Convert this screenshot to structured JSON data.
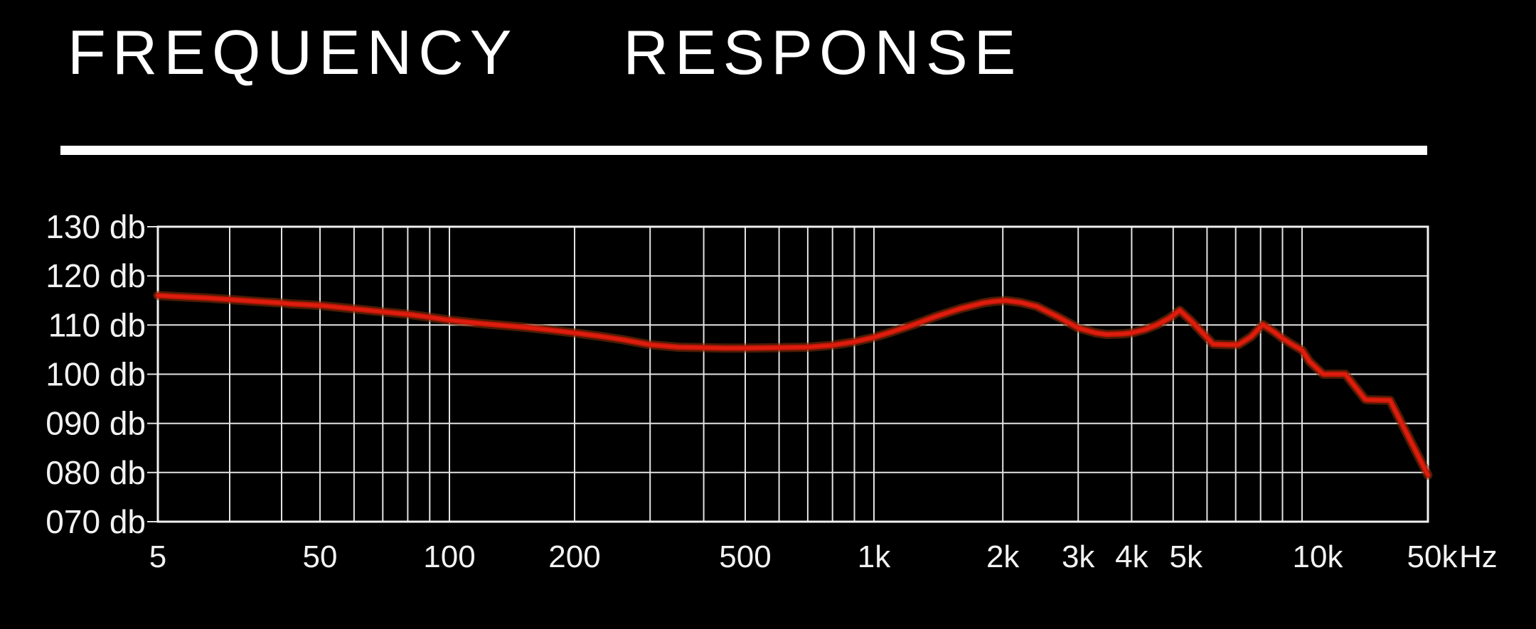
{
  "page": {
    "title": "FREQUENCY RESPONSE"
  },
  "styles": {
    "background": "#000000",
    "grid_color": "#e3e3e3",
    "frame_color": "#f0f0f0",
    "text_color": "#f2f2f2",
    "rule_color": "#ffffff",
    "curve_color": "#c5170a",
    "curve_bright": "#e01e0e",
    "curve_glow": "#7e2d05"
  },
  "chart_data": {
    "type": "line",
    "title": "FREQUENCY RESPONSE",
    "grid": true,
    "legend": "none",
    "x_axis": {
      "unit": "Hz",
      "scale": "log-stylized",
      "min": 5,
      "max": 50000,
      "ticks": [
        {
          "value": 5,
          "label": "5"
        },
        {
          "value": 50,
          "label": "50"
        },
        {
          "value": 100,
          "label": "100"
        },
        {
          "value": 200,
          "label": "200"
        },
        {
          "value": 500,
          "label": "500"
        },
        {
          "value": 1000,
          "label": "1k"
        },
        {
          "value": 2000,
          "label": "2k"
        },
        {
          "value": 3000,
          "label": "3k"
        },
        {
          "value": 4000,
          "label": "4k"
        },
        {
          "value": 5000,
          "label": "5k"
        },
        {
          "value": 10000,
          "label": "10k"
        },
        {
          "value": 50000,
          "label": "50k"
        }
      ],
      "unit_label": "Hz",
      "gridline_freqs": [
        10,
        20,
        50,
        60,
        70,
        80,
        90,
        100,
        200,
        300,
        400,
        500,
        600,
        700,
        800,
        900,
        1000,
        2000,
        3000,
        4000,
        5000,
        6000,
        7000,
        8000,
        9000,
        10000
      ]
    },
    "y_axis": {
      "unit": "db",
      "min": 70,
      "max": 130,
      "step": 10,
      "ticks": [
        {
          "value": 130,
          "label": "130 db"
        },
        {
          "value": 120,
          "label": "120 db"
        },
        {
          "value": 110,
          "label": "110 db"
        },
        {
          "value": 100,
          "label": "100 db"
        },
        {
          "value": 90,
          "label": "090 db"
        },
        {
          "value": 80,
          "label": "080 db"
        },
        {
          "value": 70,
          "label": "070 db"
        }
      ]
    },
    "series": [
      {
        "name": "frequency-response-curve",
        "color": "#c5170a",
        "points": [
          [
            5,
            116.0
          ],
          [
            6,
            115.8
          ],
          [
            8,
            115.5
          ],
          [
            10,
            115.2
          ],
          [
            13,
            114.9
          ],
          [
            16,
            114.7
          ],
          [
            20,
            114.5
          ],
          [
            25,
            114.3
          ],
          [
            32,
            114.2
          ],
          [
            40,
            114.1
          ],
          [
            50,
            114.0
          ],
          [
            60,
            113.3
          ],
          [
            70,
            112.7
          ],
          [
            80,
            112.2
          ],
          [
            90,
            111.6
          ],
          [
            100,
            111.0
          ],
          [
            120,
            110.3
          ],
          [
            150,
            109.6
          ],
          [
            175,
            109.0
          ],
          [
            200,
            108.4
          ],
          [
            230,
            107.7
          ],
          [
            260,
            107.0
          ],
          [
            300,
            106.0
          ],
          [
            350,
            105.5
          ],
          [
            400,
            105.4
          ],
          [
            450,
            105.3
          ],
          [
            500,
            105.3
          ],
          [
            600,
            105.4
          ],
          [
            700,
            105.5
          ],
          [
            800,
            105.9
          ],
          [
            900,
            106.6
          ],
          [
            1000,
            107.5
          ],
          [
            1100,
            108.6
          ],
          [
            1250,
            110.2
          ],
          [
            1400,
            111.8
          ],
          [
            1600,
            113.4
          ],
          [
            1800,
            114.5
          ],
          [
            1900,
            114.8
          ],
          [
            2030,
            115.0
          ],
          [
            2200,
            114.6
          ],
          [
            2400,
            113.8
          ],
          [
            2700,
            111.6
          ],
          [
            3000,
            109.4
          ],
          [
            3300,
            108.4
          ],
          [
            3500,
            108.1
          ],
          [
            3800,
            108.2
          ],
          [
            4000,
            108.4
          ],
          [
            4300,
            109.1
          ],
          [
            4600,
            110.1
          ],
          [
            4900,
            111.4
          ],
          [
            5180,
            113.0
          ],
          [
            5500,
            110.9
          ],
          [
            5900,
            108.1
          ],
          [
            6200,
            106.1
          ],
          [
            6700,
            106.0
          ],
          [
            7100,
            106.0
          ],
          [
            7600,
            107.6
          ],
          [
            8100,
            110.1
          ],
          [
            8600,
            108.6
          ],
          [
            9000,
            107.3
          ],
          [
            9500,
            106.0
          ],
          [
            10000,
            104.9
          ],
          [
            11000,
            102.6
          ],
          [
            13000,
            100.1
          ],
          [
            13200,
            100.0
          ],
          [
            17400,
            100.0
          ],
          [
            19000,
            98.2
          ],
          [
            22400,
            94.9
          ],
          [
            23000,
            94.8
          ],
          [
            30800,
            94.7
          ],
          [
            50000,
            79.5
          ]
        ]
      }
    ]
  }
}
